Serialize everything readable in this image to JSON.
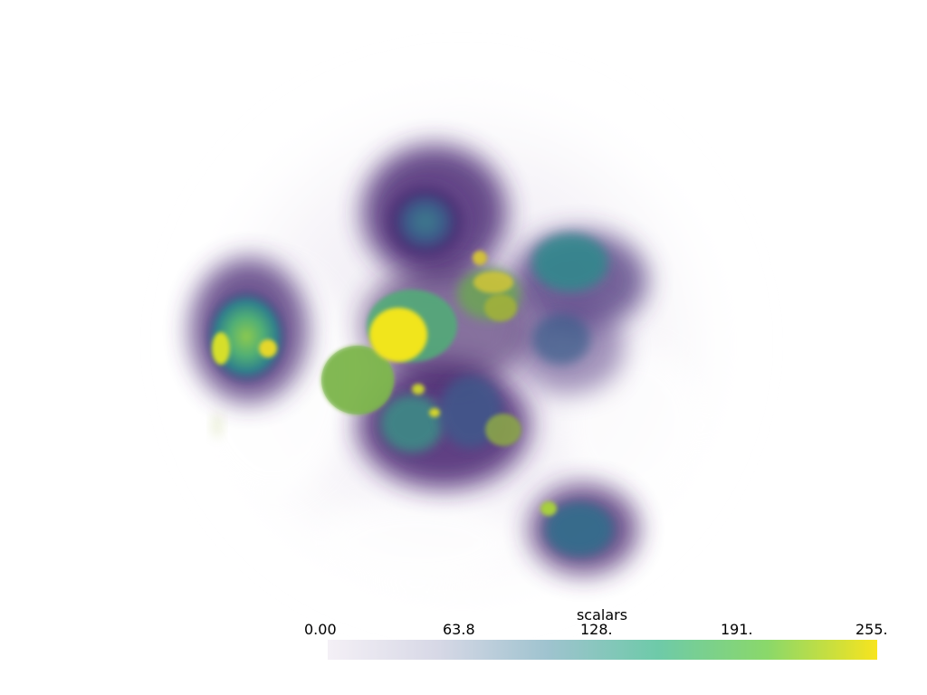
{
  "colorbar": {
    "title": "scalars",
    "ticks": [
      "0.00",
      "63.8",
      "128.",
      "191.",
      "255."
    ],
    "range": [
      0,
      255
    ],
    "colormap": "viridis",
    "stops": [
      "#f4f0f6",
      "#d7d8e6",
      "#9fc3cf",
      "#6ecaa9",
      "#8ad86a",
      "#f7e41e"
    ]
  },
  "scene": {
    "description_icon": "volume-rendering",
    "colors": {
      "low": "#440f54",
      "mid": "#3b5b8b",
      "teal": "#2d9a8a",
      "green": "#5fba6c",
      "high": "#f0e21e"
    }
  }
}
